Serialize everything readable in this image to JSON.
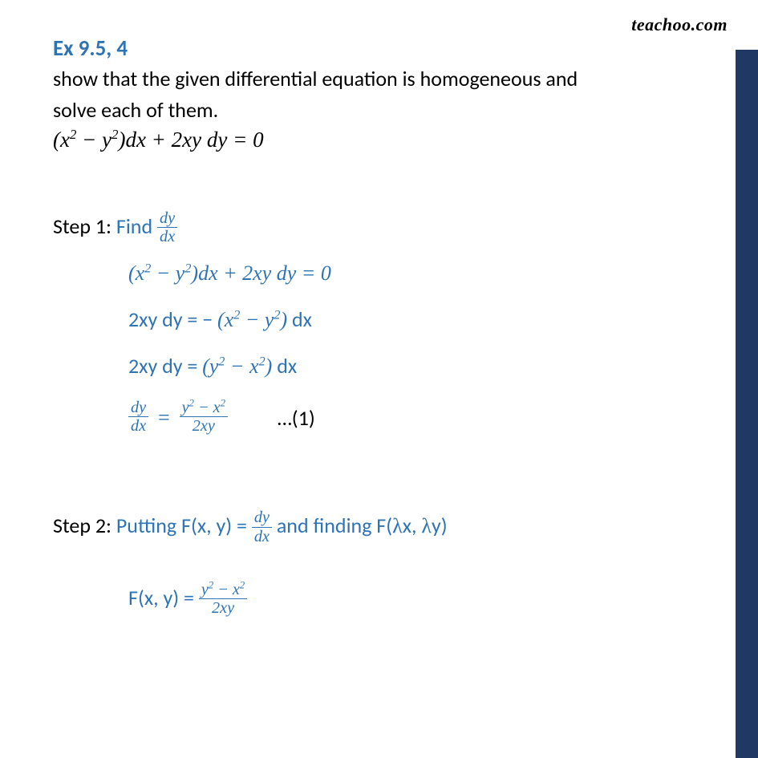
{
  "colors": {
    "blue": "#2e74b5",
    "black": "#000000",
    "sidebar": "#203864",
    "bg": "#ffffff"
  },
  "typography": {
    "title_fontsize": 27,
    "body_fontsize": 26,
    "math_fontsize": 26,
    "watermark_fontsize": 22,
    "watermark_color": "#000000"
  },
  "watermark": "teachoo.com",
  "title": "Ex 9.5, 4",
  "intro_line1": "show that the given differential equation is homogeneous and",
  "intro_line2": "solve each of them.",
  "main_eq": {
    "lhs1": "(x",
    "sup1": "2",
    "mid1": " − y",
    "sup2": "2",
    "mid2": ")dx + 2xy dy = 0"
  },
  "step1": {
    "label_prefix": "Step 1: ",
    "label_find": "Find ",
    "dy": "dy",
    "dx": "dx",
    "eq1": {
      "a": "(x",
      "s1": "2",
      "b": " − y",
      "s2": "2",
      "c": ")dx + 2xy dy = 0"
    },
    "eq2": {
      "pre": "2xy dy = − ",
      "a": "(x",
      "s1": "2",
      "b": " − y",
      "s2": "2",
      "c": ")",
      "post": " dx"
    },
    "eq3": {
      "pre": "2xy dy = ",
      "a": "(y",
      "s1": "2",
      "b": " − x",
      "s2": "2",
      "c": ")",
      "post": " dx"
    },
    "eq4": {
      "lhs_num": "dy",
      "lhs_den": "dx",
      "rhs_num_a": "y",
      "rhs_s1": "2",
      "rhs_mid": " − x",
      "rhs_s2": "2",
      "rhs_den": "2xy",
      "note": "…(1)"
    }
  },
  "step2": {
    "label_prefix": "Step 2: ",
    "put_pre": "Putting F(x, y) = ",
    "dy": "dy",
    "dx": "dx",
    "put_post_a": " and finding F(",
    "lambda1": "λ",
    "put_post_b": "x, ",
    "lambda2": "λ",
    "put_post_c": "y)",
    "fxy_pre": "F(x, y) = ",
    "rhs_num_a": "y",
    "rhs_s1": "2",
    "rhs_mid": " − x",
    "rhs_s2": "2",
    "rhs_den": "2xy"
  }
}
